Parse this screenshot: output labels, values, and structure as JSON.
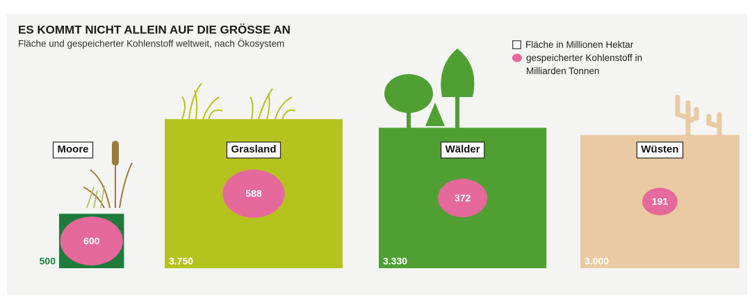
{
  "chart_data": {
    "type": "area-proportional",
    "title": "ES KOMMT NICHT ALLEIN AUF DIE GRÖSSE AN",
    "subtitle": "Fläche und gespeicherter Kohlenstoff weltweit, nach Ökosystem",
    "categories": [
      "Moore",
      "Grasland",
      "Wälder",
      "Wüsten"
    ],
    "series": [
      {
        "name": "Fläche in Millionen Hektar",
        "colors": [
          "#1e7b3c",
          "#b5c31f",
          "#4f9f33",
          "#e9caa2"
        ],
        "label_colors": [
          "#1e7b3c",
          "#ffffff",
          "#ffffff",
          "#ffffff"
        ],
        "values": [
          500,
          3750,
          3330,
          3000
        ],
        "value_labels": [
          "500",
          "3.750",
          "3.330",
          "3.000"
        ]
      },
      {
        "name": "gespeicherter Kohlenstoff in Milliarden Tonnen",
        "color": "#e6699b",
        "values": [
          600,
          588,
          372,
          191
        ]
      }
    ]
  }
}
